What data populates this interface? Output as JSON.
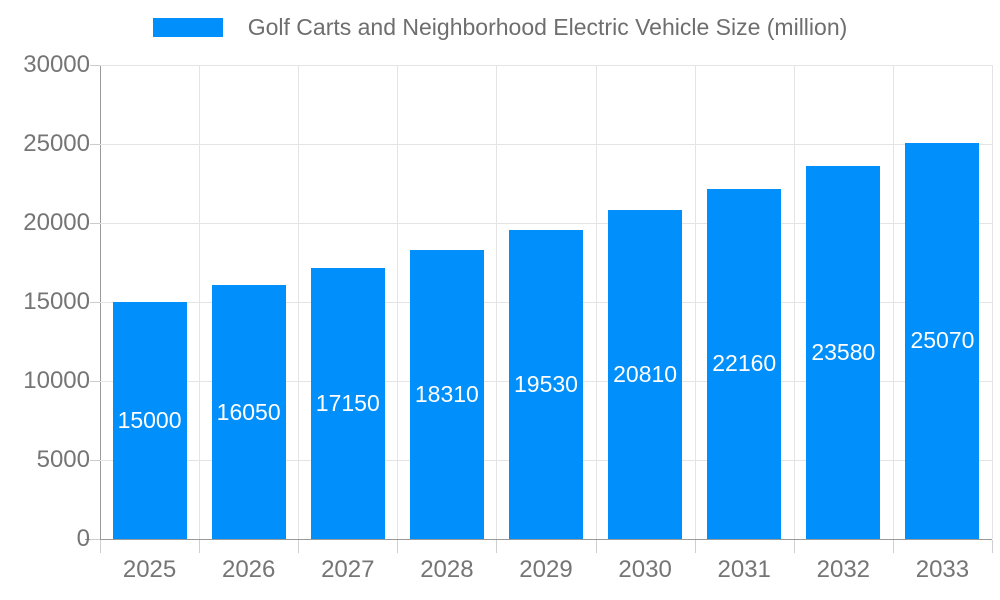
{
  "legend": {
    "label": "Golf Carts and Neighborhood Electric Vehicle Size (million)",
    "swatch_color": "#008FFB"
  },
  "chart_data": {
    "type": "bar",
    "title": "Golf Carts and Neighborhood Electric Vehicle Size (million)",
    "categories": [
      "2025",
      "2026",
      "2027",
      "2028",
      "2029",
      "2030",
      "2031",
      "2032",
      "2033"
    ],
    "values": [
      15000,
      16050,
      17150,
      18310,
      19530,
      20810,
      22160,
      23580,
      25070
    ],
    "xlabel": "",
    "ylabel": "",
    "ylim": [
      0,
      30000
    ],
    "ytick_step": 5000,
    "ytick_labels": [
      "0",
      "5000",
      "10000",
      "15000",
      "20000",
      "25000",
      "30000"
    ],
    "grid": true,
    "legend_position": "top",
    "bar_color": "#008FFB",
    "value_label_style": "white, centered inside bar"
  },
  "colors": {
    "bar": "#008FFB",
    "axis_text": "#757575",
    "legend_text": "#6e6e6e",
    "gridline": "#e4e4e4",
    "axis_line": "#9a9a9a",
    "background": "#ffffff"
  }
}
